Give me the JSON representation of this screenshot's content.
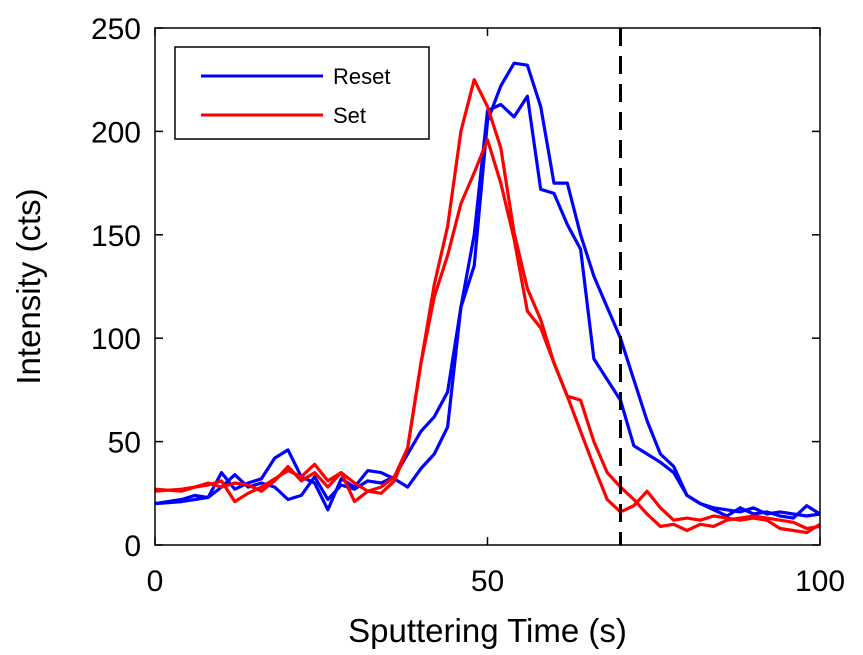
{
  "chart_data": {
    "type": "line",
    "xlabel": "Sputtering Time (s)",
    "ylabel": "Intensity (cts)",
    "xlim": [
      0,
      100
    ],
    "ylim": [
      0,
      250
    ],
    "xticks": [
      0,
      50,
      100
    ],
    "yticks": [
      0,
      50,
      100,
      150,
      200,
      250
    ],
    "grid": false,
    "legend": {
      "placement": "top-left",
      "entries": [
        {
          "label": "Reset",
          "color": "#0000ff"
        },
        {
          "label": "Set",
          "color": "#ff0000"
        }
      ]
    },
    "reference_line": {
      "x": 70,
      "style": "dashed",
      "color": "#000000"
    },
    "series": [
      {
        "group": "Reset",
        "color": "#0000ff",
        "points": [
          [
            0,
            20
          ],
          [
            4,
            21
          ],
          [
            6,
            22
          ],
          [
            8,
            23
          ],
          [
            10,
            35
          ],
          [
            12,
            27
          ],
          [
            14,
            30
          ],
          [
            16,
            32
          ],
          [
            18,
            42
          ],
          [
            20,
            46
          ],
          [
            22,
            33
          ],
          [
            24,
            30
          ],
          [
            26,
            17
          ],
          [
            28,
            32
          ],
          [
            30,
            28
          ],
          [
            32,
            36
          ],
          [
            34,
            35
          ],
          [
            36,
            32
          ],
          [
            38,
            28
          ],
          [
            40,
            37
          ],
          [
            42,
            44
          ],
          [
            44,
            57
          ],
          [
            46,
            115
          ],
          [
            48,
            135
          ],
          [
            50,
            205
          ],
          [
            52,
            222
          ],
          [
            54,
            233
          ],
          [
            56,
            232
          ],
          [
            58,
            212
          ],
          [
            60,
            175
          ],
          [
            62,
            175
          ],
          [
            64,
            150
          ],
          [
            66,
            130
          ],
          [
            68,
            115
          ],
          [
            70,
            100
          ],
          [
            72,
            80
          ],
          [
            74,
            60
          ],
          [
            76,
            44
          ],
          [
            78,
            38
          ],
          [
            80,
            24
          ],
          [
            82,
            20
          ],
          [
            84,
            18
          ],
          [
            86,
            17
          ],
          [
            88,
            16
          ],
          [
            90,
            18
          ],
          [
            92,
            15
          ],
          [
            94,
            16
          ],
          [
            96,
            15
          ],
          [
            98,
            14
          ],
          [
            100,
            15
          ]
        ]
      },
      {
        "group": "Reset",
        "color": "#0000ff",
        "points": [
          [
            0,
            20
          ],
          [
            4,
            22
          ],
          [
            6,
            24
          ],
          [
            8,
            23
          ],
          [
            10,
            28
          ],
          [
            12,
            34
          ],
          [
            14,
            28
          ],
          [
            16,
            30
          ],
          [
            18,
            28
          ],
          [
            20,
            22
          ],
          [
            22,
            24
          ],
          [
            24,
            33
          ],
          [
            26,
            22
          ],
          [
            28,
            29
          ],
          [
            30,
            27
          ],
          [
            32,
            31
          ],
          [
            34,
            30
          ],
          [
            36,
            33
          ],
          [
            38,
            44
          ],
          [
            40,
            55
          ],
          [
            42,
            62
          ],
          [
            44,
            74
          ],
          [
            46,
            115
          ],
          [
            48,
            150
          ],
          [
            50,
            210
          ],
          [
            52,
            213
          ],
          [
            54,
            207
          ],
          [
            56,
            217
          ],
          [
            58,
            172
          ],
          [
            60,
            170
          ],
          [
            62,
            155
          ],
          [
            64,
            143
          ],
          [
            66,
            90
          ],
          [
            68,
            80
          ],
          [
            70,
            70
          ],
          [
            72,
            48
          ],
          [
            74,
            44
          ],
          [
            76,
            40
          ],
          [
            78,
            35
          ],
          [
            80,
            24
          ],
          [
            82,
            20
          ],
          [
            84,
            17
          ],
          [
            86,
            14
          ],
          [
            88,
            18
          ],
          [
            90,
            15
          ],
          [
            92,
            16
          ],
          [
            94,
            14
          ],
          [
            96,
            13
          ],
          [
            98,
            19
          ],
          [
            100,
            15
          ]
        ]
      },
      {
        "group": "Set",
        "color": "#ff0000",
        "points": [
          [
            0,
            27
          ],
          [
            4,
            26
          ],
          [
            6,
            28
          ],
          [
            8,
            29
          ],
          [
            10,
            31
          ],
          [
            12,
            21
          ],
          [
            14,
            25
          ],
          [
            16,
            28
          ],
          [
            18,
            32
          ],
          [
            20,
            36
          ],
          [
            22,
            33
          ],
          [
            24,
            39
          ],
          [
            26,
            31
          ],
          [
            28,
            35
          ],
          [
            30,
            30
          ],
          [
            32,
            26
          ],
          [
            34,
            28
          ],
          [
            36,
            33
          ],
          [
            38,
            47
          ],
          [
            40,
            88
          ],
          [
            42,
            126
          ],
          [
            44,
            154
          ],
          [
            46,
            200
          ],
          [
            48,
            225
          ],
          [
            50,
            212
          ],
          [
            52,
            192
          ],
          [
            54,
            151
          ],
          [
            56,
            124
          ],
          [
            58,
            109
          ],
          [
            60,
            88
          ],
          [
            62,
            72
          ],
          [
            64,
            70
          ],
          [
            66,
            50
          ],
          [
            68,
            35
          ],
          [
            70,
            28
          ],
          [
            72,
            22
          ],
          [
            74,
            15
          ],
          [
            76,
            9
          ],
          [
            78,
            10
          ],
          [
            80,
            7
          ],
          [
            82,
            10
          ],
          [
            84,
            9
          ],
          [
            86,
            12
          ],
          [
            88,
            13
          ],
          [
            90,
            14
          ],
          [
            92,
            13
          ],
          [
            94,
            12
          ],
          [
            96,
            11
          ],
          [
            98,
            8
          ],
          [
            100,
            9
          ]
        ]
      },
      {
        "group": "Set",
        "color": "#ff0000",
        "points": [
          [
            0,
            26
          ],
          [
            4,
            27
          ],
          [
            6,
            28
          ],
          [
            8,
            30
          ],
          [
            10,
            28
          ],
          [
            12,
            30
          ],
          [
            14,
            29
          ],
          [
            16,
            26
          ],
          [
            18,
            31
          ],
          [
            20,
            38
          ],
          [
            22,
            31
          ],
          [
            24,
            35
          ],
          [
            26,
            28
          ],
          [
            28,
            35
          ],
          [
            30,
            21
          ],
          [
            32,
            26
          ],
          [
            34,
            25
          ],
          [
            36,
            31
          ],
          [
            38,
            47
          ],
          [
            40,
            88
          ],
          [
            42,
            120
          ],
          [
            44,
            140
          ],
          [
            46,
            165
          ],
          [
            48,
            180
          ],
          [
            50,
            196
          ],
          [
            52,
            175
          ],
          [
            54,
            148
          ],
          [
            56,
            113
          ],
          [
            58,
            105
          ],
          [
            60,
            88
          ],
          [
            62,
            72
          ],
          [
            64,
            55
          ],
          [
            66,
            38
          ],
          [
            68,
            22
          ],
          [
            70,
            16
          ],
          [
            72,
            19
          ],
          [
            74,
            26
          ],
          [
            76,
            18
          ],
          [
            78,
            12
          ],
          [
            80,
            13
          ],
          [
            82,
            12
          ],
          [
            84,
            14
          ],
          [
            86,
            13
          ],
          [
            88,
            12
          ],
          [
            90,
            13
          ],
          [
            92,
            12
          ],
          [
            94,
            8
          ],
          [
            96,
            7
          ],
          [
            98,
            6
          ],
          [
            100,
            10
          ]
        ]
      }
    ]
  }
}
